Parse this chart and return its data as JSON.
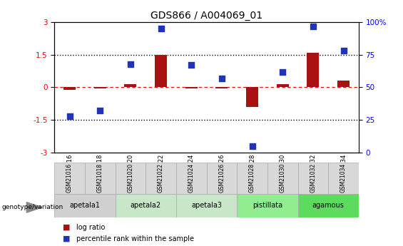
{
  "title": "GDS866 / A004069_01",
  "samples": [
    "GSM21016",
    "GSM21018",
    "GSM21020",
    "GSM21022",
    "GSM21024",
    "GSM21026",
    "GSM21028",
    "GSM21030",
    "GSM21032",
    "GSM21034"
  ],
  "log_ratio": [
    -0.1,
    -0.06,
    0.15,
    1.5,
    -0.05,
    -0.04,
    -0.9,
    0.15,
    1.6,
    0.3
  ],
  "percentile_rank": [
    28,
    32,
    68,
    95,
    67,
    57,
    5,
    62,
    97,
    78
  ],
  "ylim_left": [
    -3,
    3
  ],
  "ylim_right": [
    0,
    100
  ],
  "groups": [
    {
      "label": "apetala1",
      "cols": [
        0,
        1
      ],
      "color": "#d0d0d0"
    },
    {
      "label": "apetala2",
      "cols": [
        2,
        3
      ],
      "color": "#c8e6c8"
    },
    {
      "label": "apetala3",
      "cols": [
        4,
        5
      ],
      "color": "#c8e6c8"
    },
    {
      "label": "pistillata",
      "cols": [
        6,
        7
      ],
      "color": "#90ee90"
    },
    {
      "label": "agamous",
      "cols": [
        8,
        9
      ],
      "color": "#5cdb5c"
    }
  ],
  "bar_color": "#aa1111",
  "dot_color": "#2233bb",
  "bar_width": 0.4,
  "dot_size": 28,
  "tick_label_color": "#888888",
  "sample_box_color": "#d8d8d8",
  "legend_items": [
    {
      "label": "log ratio",
      "color": "#aa1111"
    },
    {
      "label": "percentile rank within the sample",
      "color": "#2233bb"
    }
  ]
}
